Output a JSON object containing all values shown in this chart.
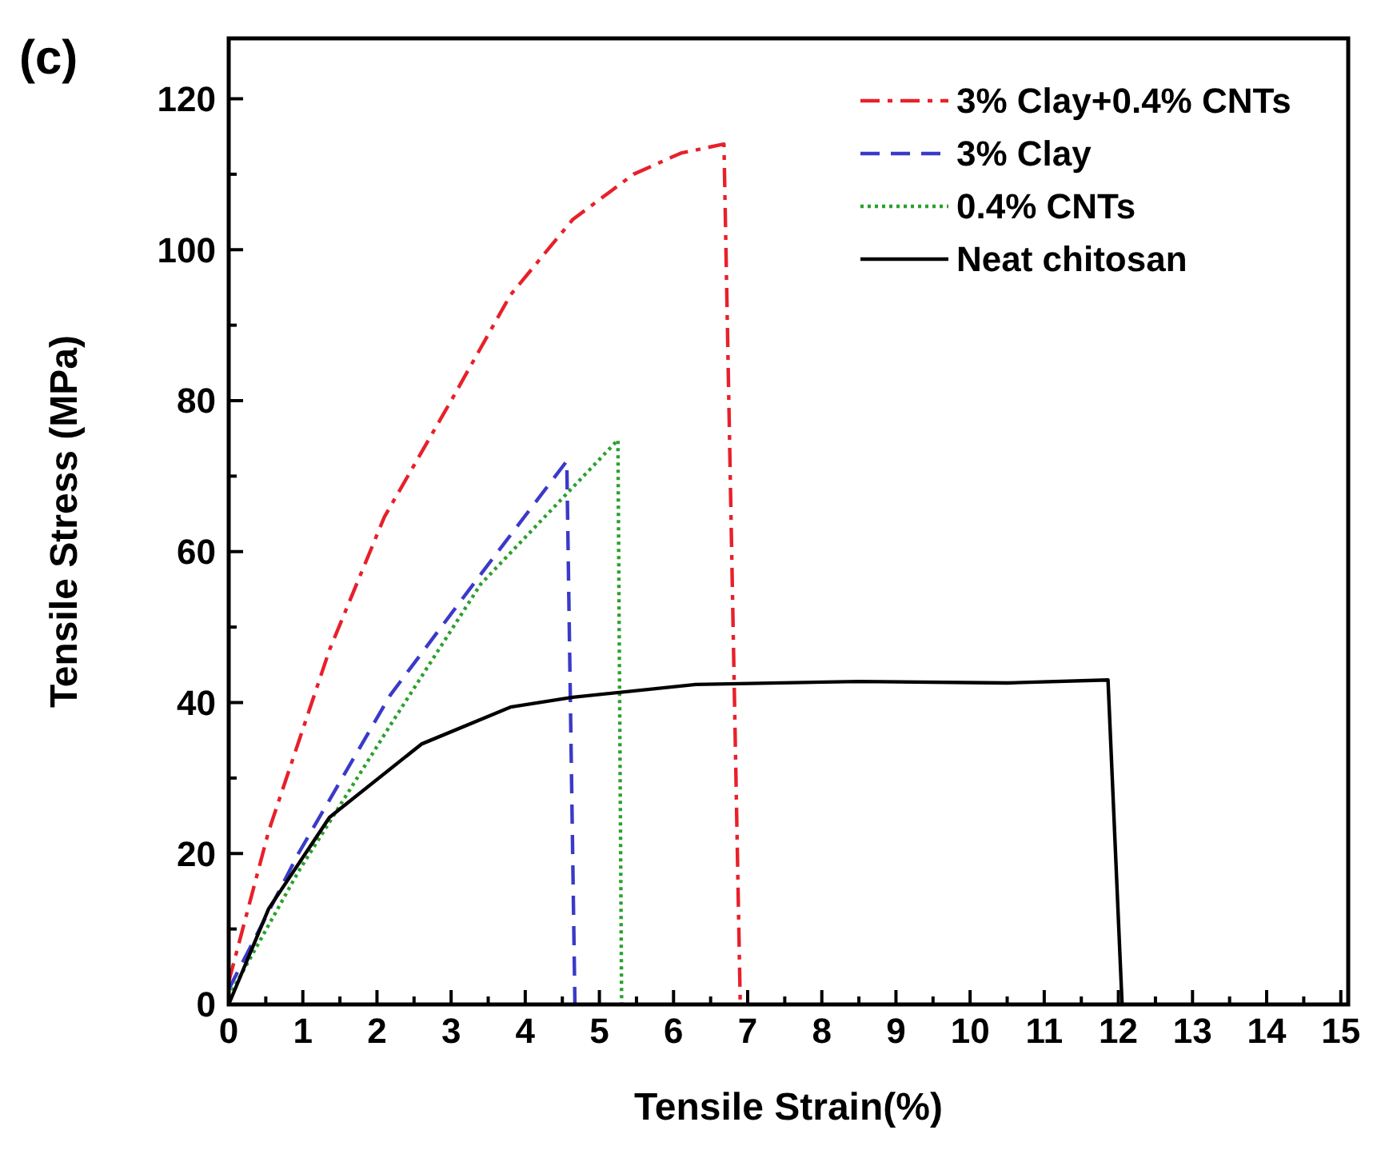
{
  "chart_data": {
    "type": "line",
    "xlabel": "Tensile Strain(%)",
    "ylabel": "Tensile Stress (MPa)",
    "annotations": [
      "(c)"
    ],
    "xlim": [
      0,
      15.1
    ],
    "xticks": [
      0,
      {
        "value": 0.5,
        "label": null
      },
      1,
      {
        "value": 1.5,
        "label": null
      },
      2,
      {
        "value": 2.5,
        "label": null
      },
      3,
      {
        "value": 3.5,
        "label": null
      },
      4,
      {
        "value": 4.5,
        "label": null
      },
      5,
      {
        "value": 5.5,
        "label": null
      },
      6,
      {
        "value": 6.5,
        "label": null
      },
      7,
      {
        "value": 7.5,
        "label": null
      },
      8,
      {
        "value": 8.5,
        "label": null
      },
      9,
      {
        "value": 9.5,
        "label": null
      },
      10,
      {
        "value": 10.5,
        "label": null
      },
      11,
      {
        "value": 11.5,
        "label": null
      },
      12,
      {
        "value": 12.5,
        "label": null
      },
      13,
      {
        "value": 13.5,
        "label": null
      },
      14,
      {
        "value": 14.5,
        "label": null
      },
      15
    ],
    "ylim": [
      0,
      128
    ],
    "yticks": [
      0,
      {
        "value": 10,
        "label": null
      },
      20,
      {
        "value": 30,
        "label": null
      },
      40,
      {
        "value": 50,
        "label": null
      },
      60,
      {
        "value": 70,
        "label": null
      },
      80,
      {
        "value": 90,
        "label": null
      },
      100,
      {
        "value": 110,
        "label": null
      },
      120
    ],
    "grid": false,
    "legend": "top right",
    "marker": "none",
    "series": [
      {
        "name": "3% Clay+0.4% CNTs",
        "color": "#e8202a",
        "line_style": "dashdot",
        "x": [
          0,
          0.54,
          1.36,
          2.1,
          3.0,
          3.8,
          4.64,
          5.46,
          6.1,
          6.68,
          6.9
        ],
        "values": [
          3,
          23,
          47,
          64.6,
          80,
          94,
          104,
          110,
          112.8,
          114,
          0
        ]
      },
      {
        "name": "3% Clay",
        "color": "#3a3ac8",
        "line_style": "dashed",
        "x": [
          0,
          0.94,
          2.18,
          3.4,
          4.56,
          4.67
        ],
        "values": [
          2,
          20,
          41,
          57,
          72,
          0
        ]
      },
      {
        "name": "0.4% CNTs",
        "color": "#2ca02c",
        "line_style": "dotted",
        "x": [
          0,
          0.94,
          2.18,
          3.4,
          5.25,
          5.3
        ],
        "values": [
          1,
          17.6,
          37,
          55.7,
          74.8,
          0
        ]
      },
      {
        "name": "Neat chitosan",
        "color": "#000000",
        "line_style": "solid",
        "x": [
          0,
          0.54,
          1.36,
          2.6,
          3.8,
          4.64,
          6.3,
          8.5,
          10.5,
          11.86,
          12.05
        ],
        "values": [
          0,
          12.7,
          24.8,
          34.5,
          39.4,
          40.7,
          42.4,
          42.8,
          42.6,
          43,
          0
        ]
      }
    ]
  }
}
